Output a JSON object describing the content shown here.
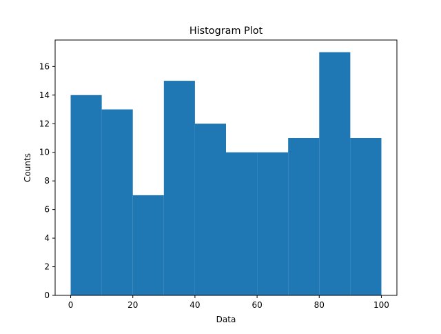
{
  "chart_data": {
    "type": "bar",
    "title": "Histogram Plot",
    "xlabel": "Data",
    "ylabel": "Counts",
    "bins": [
      {
        "start": 0,
        "end": 10,
        "count": 14
      },
      {
        "start": 10,
        "end": 20,
        "count": 13
      },
      {
        "start": 20,
        "end": 30,
        "count": 7
      },
      {
        "start": 30,
        "end": 40,
        "count": 15
      },
      {
        "start": 40,
        "end": 50,
        "count": 12
      },
      {
        "start": 50,
        "end": 60,
        "count": 10
      },
      {
        "start": 60,
        "end": 70,
        "count": 10
      },
      {
        "start": 70,
        "end": 80,
        "count": 11
      },
      {
        "start": 80,
        "end": 90,
        "count": 17
      },
      {
        "start": 90,
        "end": 100,
        "count": 11
      }
    ],
    "xlim": [
      -5,
      105
    ],
    "ylim": [
      0,
      17.85
    ],
    "xticks": [
      0,
      20,
      40,
      60,
      80,
      100
    ],
    "yticks": [
      0,
      2,
      4,
      6,
      8,
      10,
      12,
      14,
      16
    ],
    "grid": false,
    "legend": "none",
    "bar_color": "#1f77b4"
  }
}
